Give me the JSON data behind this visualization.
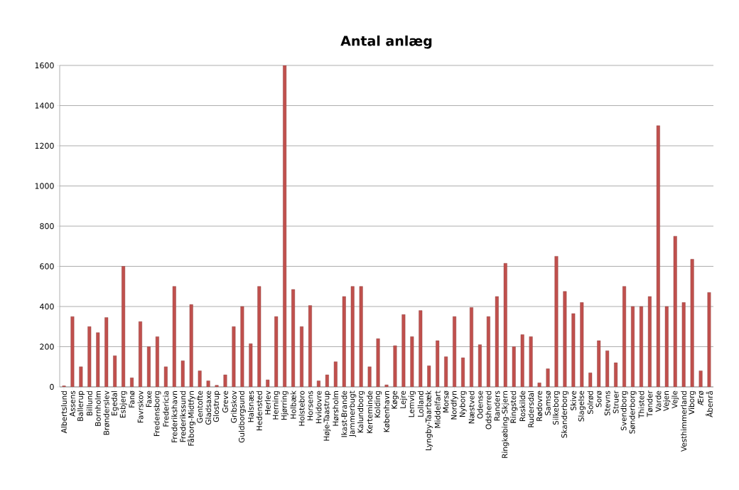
{
  "chart_data": {
    "type": "bar",
    "title": "Antal anlæg",
    "categories": [
      "Albertslund",
      "Assens",
      "Ballerup",
      "Billund",
      "Bornholm",
      "Brønderslev",
      "Egedal",
      "Esbjerg",
      "Fanø",
      "Favrskov",
      "Faxe",
      "Fredensborg",
      "Fredericia",
      "Frederikshavn",
      "Frederikssund",
      "Fåborg-Midtfyn",
      "Gentofte",
      "Gladsaxe",
      "Glostrup",
      "Greve",
      "Gribskov",
      "Guldborgsund",
      "Halsnæs",
      "Hedensted",
      "Herlev",
      "Herning",
      "Hjørring",
      "Holbæk",
      "Holstebro",
      "Horsens",
      "Hvidovre",
      "Høje-Taastrup",
      "Hørsholm",
      "Ikast-Brande",
      "Jammerbugt",
      "Kalundborg",
      "Kerteminde",
      "Kolding",
      "København",
      "Køge",
      "Lejre",
      "Lemvig",
      "Lolland",
      "Lyngby-Taarbæk",
      "Middelfart",
      "Morsø",
      "Nordfyn",
      "Nyborg",
      "Næstved",
      "Odense",
      "Odsherred",
      "Randers",
      "Ringkøbing-Skjern",
      "Ringsted",
      "Roskilde",
      "Rudersdal",
      "Rødovre",
      "Samsø",
      "Silkeborg",
      "Skanderborg",
      "Skive",
      "Slagelse",
      "Solrød",
      "Sorø",
      "Stevns",
      "Struer",
      "Svendborg",
      "Sønderborg",
      "Thisted",
      "Tønder",
      "Varde",
      "Vejen",
      "Vejle",
      "Vesthimmerland",
      "Viborg",
      "Ærø",
      "Åbenrå"
    ],
    "values": [
      5,
      350,
      100,
      300,
      270,
      345,
      155,
      600,
      45,
      325,
      200,
      250,
      100,
      500,
      130,
      410,
      80,
      30,
      8,
      60,
      300,
      400,
      215,
      500,
      35,
      350,
      1600,
      485,
      300,
      405,
      30,
      60,
      125,
      450,
      500,
      500,
      100,
      240,
      10,
      205,
      360,
      250,
      380,
      105,
      230,
      150,
      350,
      145,
      395,
      210,
      350,
      450,
      615,
      200,
      260,
      250,
      20,
      90,
      650,
      475,
      365,
      420,
      70,
      230,
      180,
      120,
      500,
      400,
      400,
      450,
      1300,
      400,
      750,
      420,
      635,
      80,
      470
    ],
    "color": "#c0504d",
    "ylim": [
      0,
      1600
    ],
    "yticks": [
      0,
      200,
      400,
      600,
      800,
      1000,
      1200,
      1400,
      1600
    ],
    "grid": "y"
  }
}
